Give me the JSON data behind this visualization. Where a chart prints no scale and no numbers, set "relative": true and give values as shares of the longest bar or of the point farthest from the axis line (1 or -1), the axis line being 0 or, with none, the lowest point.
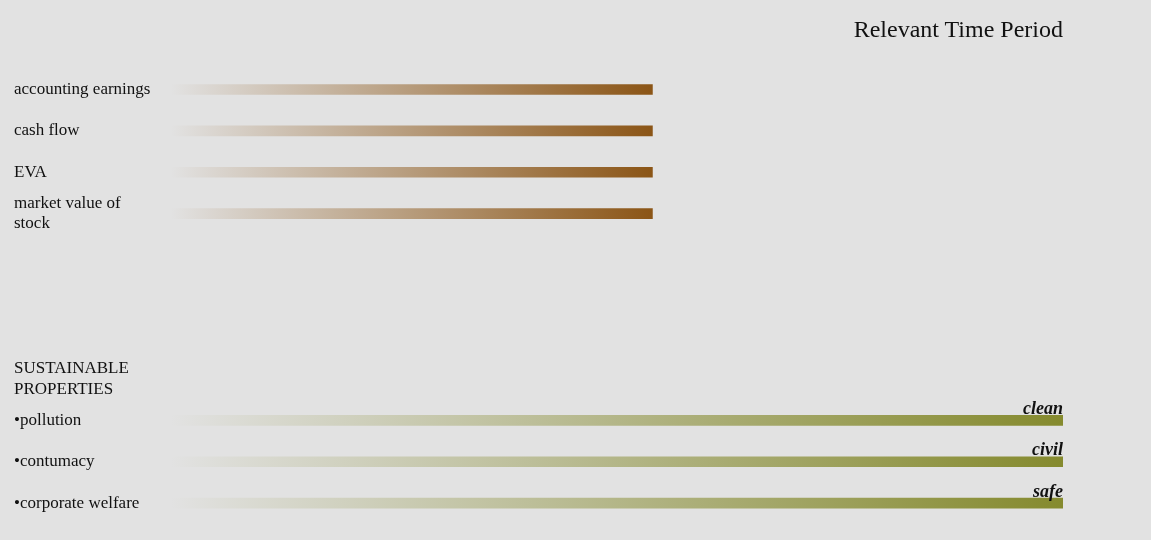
{
  "chart_data": {
    "type": "bar",
    "orientation": "horizontal",
    "relative": true,
    "title": "Relevant Time Period",
    "categories": [
      "accounting earnings",
      "cash flow",
      "EVA",
      "market value of stock",
      null,
      null,
      null,
      "SUSTAINABLE PROPERTIES",
      "•pollution",
      "•contumacy",
      "•corporate welfare"
    ],
    "values": [
      0.54,
      0.54,
      0.54,
      0.54,
      null,
      null,
      null,
      null,
      1,
      1,
      1
    ],
    "colors": [
      "#8b5516",
      "#8b5516",
      "#8b5516",
      "#8b5516",
      null,
      null,
      null,
      null,
      "#858a2e",
      "#858a2e",
      "#858a2e"
    ],
    "annotations": [
      {
        "text": "clean",
        "y": "•pollution"
      },
      {
        "text": "civil",
        "y": "•contumacy"
      },
      {
        "text": "safe",
        "y": "•corporate welfare"
      }
    ],
    "legend": false
  }
}
